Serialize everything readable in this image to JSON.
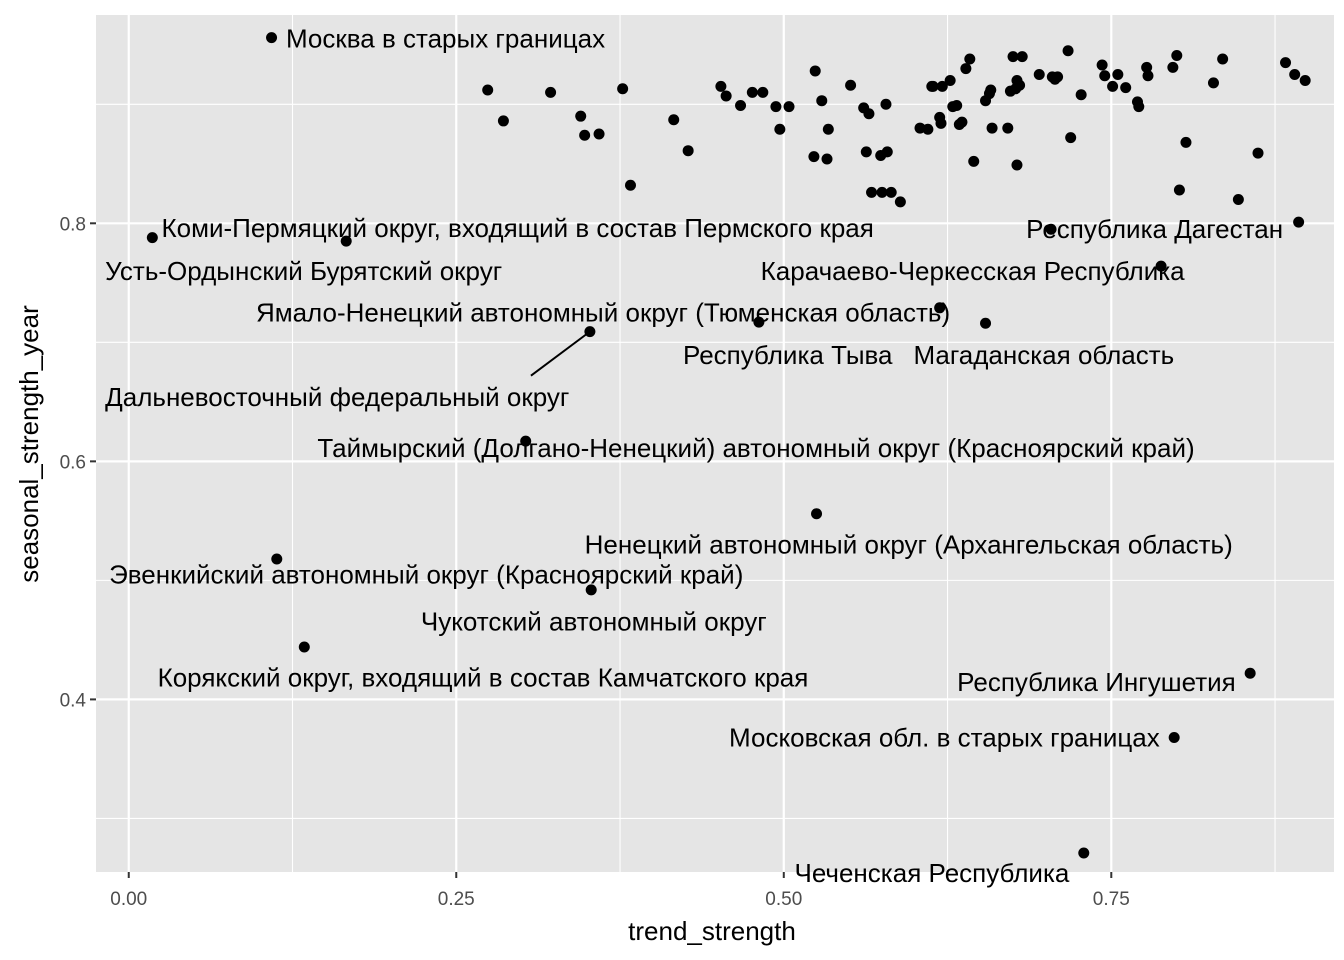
{
  "chart_data": {
    "type": "scatter",
    "xlabel": "trend_strength",
    "ylabel": "seasonal_strength_year",
    "xlim": [
      -0.025,
      0.92
    ],
    "ylim": [
      0.255,
      0.975
    ],
    "x_ticks": [
      0.0,
      0.25,
      0.5,
      0.75
    ],
    "x_tick_labels": [
      "0.00",
      "0.25",
      "0.50",
      "0.75"
    ],
    "y_ticks": [
      0.4,
      0.6,
      0.8
    ],
    "y_tick_labels": [
      "0.4",
      "0.6",
      "0.8"
    ],
    "grid": true,
    "colors": {
      "panel": "#e5e5e5",
      "grid": "#ffffff",
      "point": "#000000",
      "text": "#000000",
      "tick_text": "#4d4d4d"
    },
    "labeled_points": [
      {
        "label": "Москва в старых границах",
        "x": 0.109,
        "y": 0.956,
        "ha": "start",
        "lx": 0.12,
        "ly": 0.9475
      },
      {
        "label": "Коми-Пермяцкий округ, входящий в состав Пермского края",
        "x": 0.166,
        "y": 0.785,
        "ha": "start",
        "lx": 0.025,
        "ly": 0.7885
      },
      {
        "label": "Усть-Ордынский Бурятский округ",
        "x": 0.018,
        "y": 0.788,
        "ha": "start",
        "lx": -0.018,
        "ly": 0.7525
      },
      {
        "label": "Республика Дагестан",
        "x": 0.704,
        "y": 0.795,
        "ha": "start",
        "lx": 0.685,
        "ly": 0.7875
      },
      {
        "label": "Республика Дагестан",
        "x": 0.893,
        "y": 0.801,
        "ha": "none"
      },
      {
        "label": "Карачаево-Черкесская Республика",
        "x": 0.788,
        "y": 0.764,
        "ha": "end",
        "lx": 0.806,
        "ly": 0.7525
      },
      {
        "label": "Ямало-Ненецкий автономный округ (Тюменская область)",
        "x": 0.619,
        "y": 0.729,
        "ha": "end",
        "lx": 0.627,
        "ly": 0.7175
      },
      {
        "label": "Республика Тыва",
        "x": 0.481,
        "y": 0.717,
        "ha": "end",
        "lx": 0.583,
        "ly": 0.682
      },
      {
        "label": "Магаданская область",
        "x": 0.654,
        "y": 0.716,
        "ha": "start",
        "lx": 0.599,
        "ly": 0.682
      },
      {
        "label": "Дальневосточный федеральный округ",
        "x": 0.352,
        "y": 0.709,
        "ha": "start",
        "lx": -0.018,
        "ly": 0.6465,
        "segment": [
          0.352,
          0.709,
          0.307,
          0.672
        ]
      },
      {
        "label": "Таймырский (Долгано-Ненецкий) автономный округ (Красноярский край)",
        "x": 0.303,
        "y": 0.617,
        "ha": "start",
        "lx": 0.144,
        "ly": 0.6035
      },
      {
        "label": "Ненецкий автономный округ (Архангельская область)",
        "x": 0.525,
        "y": 0.556,
        "ha": "start",
        "lx": 0.348,
        "ly": 0.5225
      },
      {
        "label": "Эвенкийский автономный округ (Красноярский край)",
        "x": 0.113,
        "y": 0.518,
        "ha": "start",
        "lx": -0.015,
        "ly": 0.4975
      },
      {
        "label": "Чукотский автономный округ",
        "x": 0.353,
        "y": 0.492,
        "ha": "start",
        "lx": 0.223,
        "ly": 0.458
      },
      {
        "label": "Корякский округ, входящий в состав Камчатского края",
        "x": 0.134,
        "y": 0.444,
        "ha": "start",
        "lx": 0.022,
        "ly": 0.411
      },
      {
        "label": "Республика Ингушетия",
        "x": 0.856,
        "y": 0.422,
        "ha": "end",
        "lx": 0.845,
        "ly": 0.407
      },
      {
        "label": "Московская обл. в старых границах",
        "x": 0.798,
        "y": 0.368,
        "ha": "end",
        "lx": 0.787,
        "ly": 0.3605
      },
      {
        "label": "Чеченская Республика",
        "x": 0.729,
        "y": 0.271,
        "ha": "end",
        "lx": 0.718,
        "ly": 0.2465
      }
    ],
    "points": [
      [
        0.274,
        0.912
      ],
      [
        0.286,
        0.886
      ],
      [
        0.322,
        0.91
      ],
      [
        0.345,
        0.89
      ],
      [
        0.348,
        0.874
      ],
      [
        0.359,
        0.875
      ],
      [
        0.377,
        0.913
      ],
      [
        0.383,
        0.832
      ],
      [
        0.416,
        0.887
      ],
      [
        0.427,
        0.861
      ],
      [
        0.452,
        0.915
      ],
      [
        0.456,
        0.907
      ],
      [
        0.467,
        0.899
      ],
      [
        0.476,
        0.91
      ],
      [
        0.484,
        0.91
      ],
      [
        0.494,
        0.898
      ],
      [
        0.497,
        0.879
      ],
      [
        0.504,
        0.898
      ],
      [
        0.524,
        0.928
      ],
      [
        0.523,
        0.856
      ],
      [
        0.529,
        0.903
      ],
      [
        0.534,
        0.879
      ],
      [
        0.533,
        0.854
      ],
      [
        0.551,
        0.916
      ],
      [
        0.561,
        0.897
      ],
      [
        0.565,
        0.892
      ],
      [
        0.563,
        0.86
      ],
      [
        0.567,
        0.826
      ],
      [
        0.574,
        0.857
      ],
      [
        0.575,
        0.826
      ],
      [
        0.578,
        0.9
      ],
      [
        0.579,
        0.86
      ],
      [
        0.582,
        0.826
      ],
      [
        0.589,
        0.818
      ],
      [
        0.604,
        0.88
      ],
      [
        0.61,
        0.879
      ],
      [
        0.614,
        0.915
      ],
      [
        0.613,
        0.915
      ],
      [
        0.621,
        0.915
      ],
      [
        0.619,
        0.889
      ],
      [
        0.62,
        0.884
      ],
      [
        0.627,
        0.92
      ],
      [
        0.629,
        0.898
      ],
      [
        0.632,
        0.899
      ],
      [
        0.634,
        0.883
      ],
      [
        0.636,
        0.885
      ],
      [
        0.639,
        0.93
      ],
      [
        0.642,
        0.938
      ],
      [
        0.645,
        0.852
      ],
      [
        0.654,
        0.903
      ],
      [
        0.657,
        0.909
      ],
      [
        0.658,
        0.912
      ],
      [
        0.659,
        0.88
      ],
      [
        0.671,
        0.88
      ],
      [
        0.673,
        0.911
      ],
      [
        0.675,
        0.94
      ],
      [
        0.677,
        0.913
      ],
      [
        0.678,
        0.92
      ],
      [
        0.678,
        0.849
      ],
      [
        0.68,
        0.916
      ],
      [
        0.682,
        0.94
      ],
      [
        0.695,
        0.925
      ],
      [
        0.705,
        0.923
      ],
      [
        0.707,
        0.921
      ],
      [
        0.709,
        0.923
      ],
      [
        0.717,
        0.945
      ],
      [
        0.719,
        0.872
      ],
      [
        0.727,
        0.908
      ],
      [
        0.743,
        0.933
      ],
      [
        0.745,
        0.924
      ],
      [
        0.751,
        0.915
      ],
      [
        0.755,
        0.925
      ],
      [
        0.761,
        0.914
      ],
      [
        0.77,
        0.902
      ],
      [
        0.771,
        0.898
      ],
      [
        0.777,
        0.931
      ],
      [
        0.778,
        0.924
      ],
      [
        0.797,
        0.931
      ],
      [
        0.8,
        0.941
      ],
      [
        0.802,
        0.828
      ],
      [
        0.807,
        0.868
      ],
      [
        0.828,
        0.918
      ],
      [
        0.835,
        0.938
      ],
      [
        0.847,
        0.82
      ],
      [
        0.862,
        0.859
      ],
      [
        0.883,
        0.935
      ],
      [
        0.89,
        0.925
      ],
      [
        0.898,
        0.92
      ]
    ]
  }
}
